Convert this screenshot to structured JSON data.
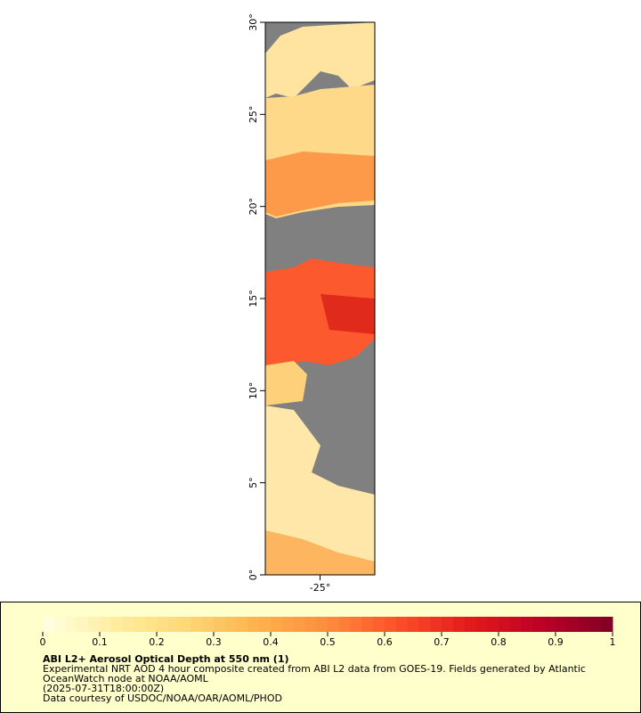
{
  "chart_data": {
    "type": "map",
    "xlim": [
      -28,
      -22
    ],
    "ylim": [
      0,
      30
    ],
    "xticks": [
      {
        "value": -25,
        "label": "-25°"
      }
    ],
    "yticks": [
      {
        "value": 0,
        "label": "0°"
      },
      {
        "value": 5,
        "label": "5°"
      },
      {
        "value": 10,
        "label": "10°"
      },
      {
        "value": 15,
        "label": "15°"
      },
      {
        "value": 20,
        "label": "20°"
      },
      {
        "value": 25,
        "label": "25°"
      },
      {
        "value": 30,
        "label": "30°"
      }
    ],
    "colorbar": {
      "range": [
        0,
        1
      ],
      "ticks": [
        0,
        0.1,
        0.2,
        0.3,
        0.4,
        0.5,
        0.6,
        0.7,
        0.8,
        0.9,
        1
      ],
      "colors": [
        "#ffffe5",
        "#ffeda0",
        "#fed976",
        "#feb24c",
        "#fd8d3c",
        "#fc4e2a",
        "#e31a1c",
        "#bd0026",
        "#800026"
      ]
    }
  },
  "legend": {
    "title": "ABI L2+ Aerosol Optical Depth at 550 nm (1)",
    "lines": [
      "Experimental NRT AOD 4 hour composite created from ABI L2 data from GOES-19. Fields generated by Atlantic",
      "OceanWatch node at NOAA/AOML",
      "(2025-07-31T18:00:00Z)",
      "Data courtesy of USDOC/NOAA/OAR/AOML/PHOD"
    ]
  }
}
